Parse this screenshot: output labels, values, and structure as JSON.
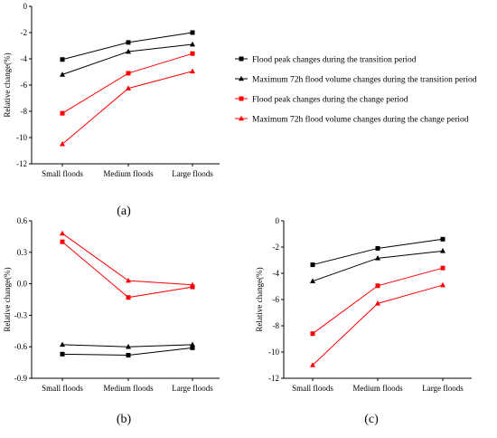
{
  "legend": [
    {
      "series": 0,
      "label": "Flood peak changes during the transition period"
    },
    {
      "series": 1,
      "label": "Maximum 72h flood volume changes during the transition period"
    },
    {
      "series": 2,
      "label": "Flood peak changes during the change period"
    },
    {
      "series": 3,
      "label": "Maximum 72h flood volume changes during the change period"
    }
  ],
  "series_style": [
    {
      "color": "#000000",
      "marker": "square"
    },
    {
      "color": "#000000",
      "marker": "triangle"
    },
    {
      "color": "#ff0000",
      "marker": "square"
    },
    {
      "color": "#ff0000",
      "marker": "triangle"
    }
  ],
  "chart_data": [
    {
      "type": "line",
      "panel_label": "(a)",
      "categories": [
        "Small floods",
        "Medium floods",
        "Large floods"
      ],
      "ylabel": "Relative change(%)",
      "ylim": [
        -12,
        0
      ],
      "yticks": [
        -12,
        -10,
        -8,
        -6,
        -4,
        -2,
        0
      ],
      "grid": false,
      "series": [
        {
          "name": "Flood peak changes during the transition period",
          "values": [
            -4.05,
            -2.75,
            -2.0
          ]
        },
        {
          "name": "Maximum 72h flood volume changes during the transition period",
          "values": [
            -5.2,
            -3.45,
            -2.9
          ]
        },
        {
          "name": "Flood peak changes during the change period",
          "values": [
            -8.15,
            -5.1,
            -3.6
          ]
        },
        {
          "name": "Maximum 72h flood volume changes during the change period",
          "values": [
            -10.5,
            -6.25,
            -4.95
          ]
        }
      ]
    },
    {
      "type": "line",
      "panel_label": "(b)",
      "categories": [
        "Small floods",
        "Medium floods",
        "Large floods"
      ],
      "ylabel": "Relative change(%)",
      "ylim": [
        -0.9,
        0.6
      ],
      "yticks": [
        "-0.9",
        "-0.6",
        "-0.3",
        "0.0",
        "0.3",
        "0.6"
      ],
      "grid": false,
      "series": [
        {
          "name": "Flood peak changes during the transition period",
          "values": [
            -0.67,
            -0.68,
            -0.61
          ]
        },
        {
          "name": "Maximum 72h flood volume changes during the transition period",
          "values": [
            -0.58,
            -0.6,
            -0.58
          ]
        },
        {
          "name": "Flood peak changes during the change period",
          "values": [
            0.4,
            -0.13,
            -0.03
          ]
        },
        {
          "name": "Maximum 72h flood volume changes during the change period",
          "values": [
            0.48,
            0.03,
            -0.01
          ]
        }
      ]
    },
    {
      "type": "line",
      "panel_label": "(c)",
      "categories": [
        "Small floods",
        "Medium floods",
        "Large floods"
      ],
      "ylabel": "Relative change(%)",
      "ylim": [
        -12,
        0
      ],
      "yticks": [
        -12,
        -10,
        -8,
        -6,
        -4,
        -2,
        0
      ],
      "grid": false,
      "series": [
        {
          "name": "Flood peak changes during the transition period",
          "values": [
            -3.35,
            -2.1,
            -1.4
          ]
        },
        {
          "name": "Maximum 72h flood volume changes during the transition period",
          "values": [
            -4.6,
            -2.85,
            -2.3
          ]
        },
        {
          "name": "Flood peak changes during the change period",
          "values": [
            -8.6,
            -4.95,
            -3.6
          ]
        },
        {
          "name": "Maximum 72h flood volume changes during the change period",
          "values": [
            -11.0,
            -6.3,
            -4.9
          ]
        }
      ]
    }
  ]
}
